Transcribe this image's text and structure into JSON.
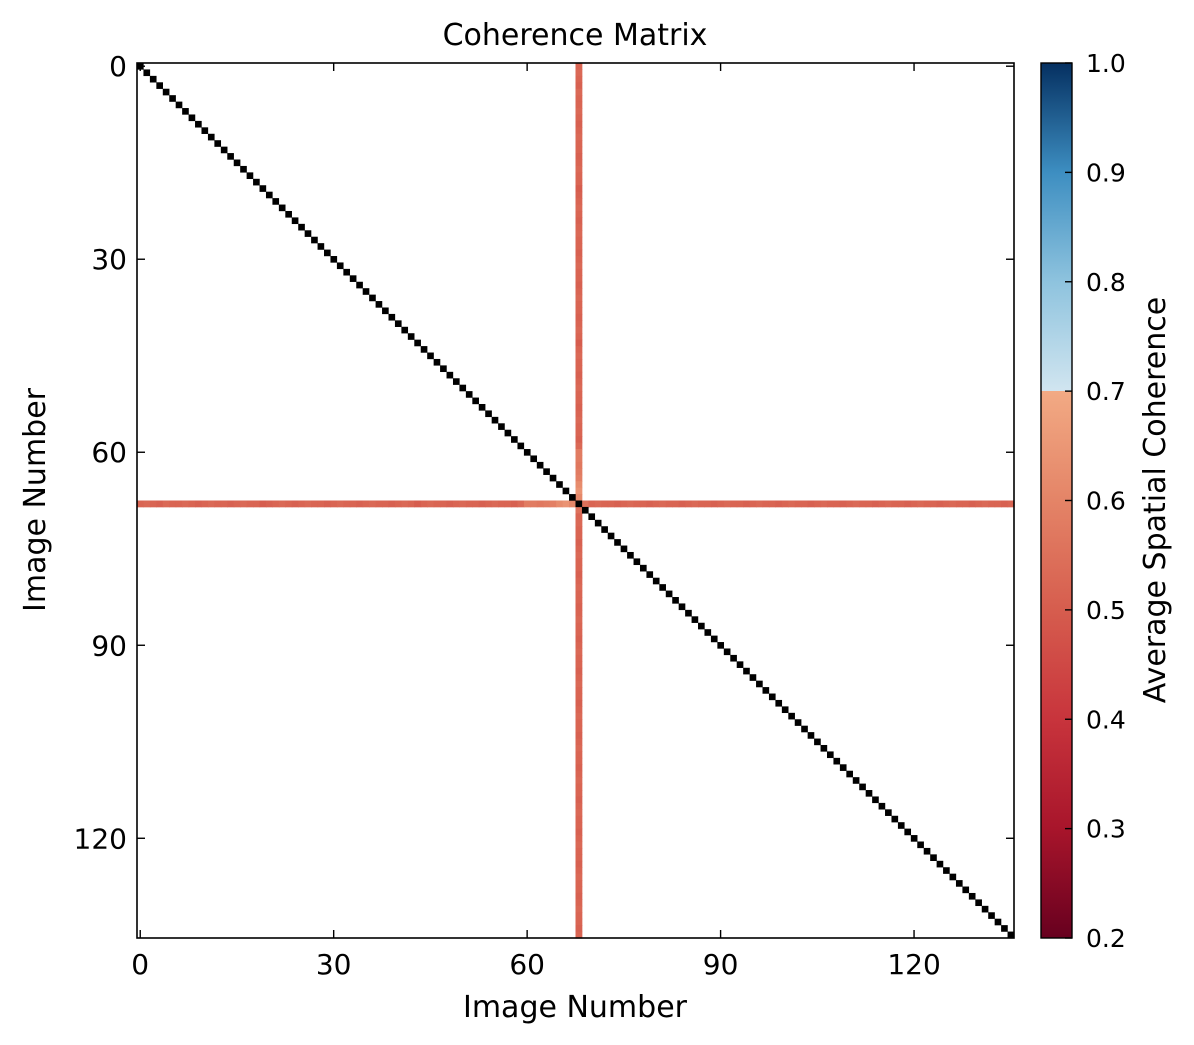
{
  "chart_data": {
    "type": "heatmap",
    "title": "Coherence Matrix",
    "xlabel": "Image Number",
    "ylabel": "Image Number",
    "n_images": 136,
    "x_ticks": [
      0,
      30,
      60,
      90,
      120
    ],
    "y_ticks": [
      0,
      30,
      60,
      90,
      120
    ],
    "diagonal_value": 1.0,
    "diagonal_color": "#000000",
    "background_value": null,
    "background_color": "#ffffff",
    "highlight_row": 68,
    "highlight_col": 68,
    "highlight_band_values": [
      0.52,
      0.53,
      0.52,
      0.51,
      0.53,
      0.52,
      0.52,
      0.53,
      0.52,
      0.51,
      0.52,
      0.53,
      0.52,
      0.52,
      0.51,
      0.52,
      0.53,
      0.52,
      0.52,
      0.5,
      0.51,
      0.52,
      0.53,
      0.52,
      0.51,
      0.52,
      0.53,
      0.52,
      0.52,
      0.51,
      0.52,
      0.53,
      0.52,
      0.52,
      0.51,
      0.52,
      0.53,
      0.52,
      0.52,
      0.51,
      0.52,
      0.53,
      0.52,
      0.5,
      0.52,
      0.53,
      0.52,
      0.52,
      0.51,
      0.52,
      0.53,
      0.52,
      0.52,
      0.51,
      0.52,
      0.53,
      0.52,
      0.52,
      0.51,
      0.53,
      0.58,
      0.58,
      0.57,
      0.58,
      0.59,
      0.62,
      0.64,
      0.61,
      1.0,
      0.55,
      0.52,
      0.53,
      0.52,
      0.52,
      0.51,
      0.52,
      0.53,
      0.52,
      0.52,
      0.51,
      0.52,
      0.53,
      0.52,
      0.52,
      0.51,
      0.52,
      0.53,
      0.52,
      0.52,
      0.51,
      0.52,
      0.53,
      0.52,
      0.52,
      0.51,
      0.52,
      0.53,
      0.52,
      0.52,
      0.51,
      0.52,
      0.53,
      0.52,
      0.52,
      0.51,
      0.52,
      0.53,
      0.52,
      0.52,
      0.51,
      0.52,
      0.53,
      0.52,
      0.52,
      0.51,
      0.52,
      0.53,
      0.52,
      0.52,
      0.51,
      0.52,
      0.53,
      0.52,
      0.52,
      0.51,
      0.52,
      0.53,
      0.52,
      0.52,
      0.51,
      0.52,
      0.53,
      0.52,
      0.52,
      0.51,
      0.52
    ],
    "colorbar": {
      "label": "Average Spatial Coherence",
      "min": 0.2,
      "max": 1.0,
      "ticks": [
        "0.2",
        "0.3",
        "0.4",
        "0.5",
        "0.6",
        "0.7",
        "0.8",
        "0.9",
        "1.0"
      ],
      "colormap": "RdBu",
      "colormap_stops": [
        {
          "v": 0.2,
          "color": "#67001f"
        },
        {
          "v": 0.3,
          "color": "#a8152b"
        },
        {
          "v": 0.4,
          "color": "#c8343c"
        },
        {
          "v": 0.5,
          "color": "#d65d4e"
        },
        {
          "v": 0.6,
          "color": "#e48467"
        },
        {
          "v": 0.7,
          "color": "#f2aa84"
        },
        {
          "v": 0.7,
          "color": "#d1e5f0"
        },
        {
          "v": 0.8,
          "color": "#8ec3de"
        },
        {
          "v": 0.9,
          "color": "#3d8ec1"
        },
        {
          "v": 1.0,
          "color": "#053061"
        }
      ]
    }
  }
}
